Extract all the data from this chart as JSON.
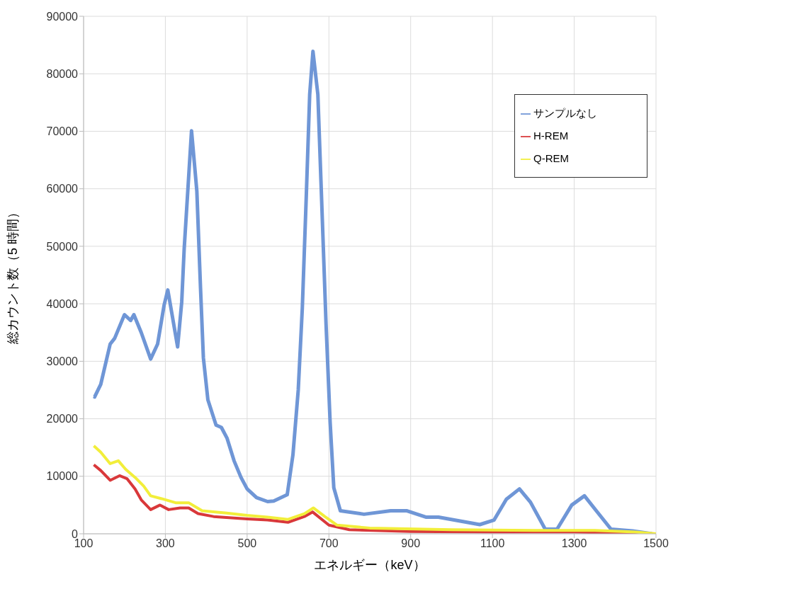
{
  "chart_data": {
    "type": "line",
    "xlabel": "エネルギー（keV）",
    "ylabel": "総カウント数（5 時間）",
    "xlim": [
      100,
      1500
    ],
    "xticks": [
      100,
      300,
      500,
      700,
      900,
      1100,
      1300,
      1500
    ],
    "ylim": [
      0,
      90000
    ],
    "yticks": [
      0,
      10000,
      20000,
      30000,
      40000,
      50000,
      60000,
      70000,
      80000,
      90000
    ],
    "grid": true,
    "legend": "top right",
    "marker": "none",
    "series": [
      {
        "name": "サンプルなし",
        "color": "#6f96d6",
        "x": [
          125,
          127,
          142,
          165,
          176,
          200,
          215,
          223,
          241,
          264,
          281,
          297,
          306,
          330,
          340,
          346,
          364,
          377,
          386,
          393,
          404,
          424,
          437,
          451,
          468,
          485,
          500,
          523,
          550,
          565,
          598,
          612,
          625,
          635,
          645,
          653,
          661,
          673,
          683,
          693,
          703,
          712,
          728,
          786,
          851,
          891,
          937,
          968,
          1069,
          1104,
          1134,
          1166,
          1193,
          1229,
          1258,
          1294,
          1325,
          1354,
          1390,
          1443,
          1490
        ],
        "values": [
          23900,
          23800,
          26000,
          33000,
          34000,
          38100,
          37100,
          38100,
          35000,
          30400,
          33000,
          39800,
          42400,
          32500,
          40300,
          49500,
          70100,
          59600,
          42700,
          30600,
          23300,
          18900,
          18500,
          16600,
          12700,
          9800,
          7800,
          6300,
          5600,
          5700,
          6800,
          13700,
          25000,
          39300,
          59400,
          76400,
          83900,
          76400,
          56500,
          36500,
          19400,
          8000,
          4000,
          3400,
          4000,
          4000,
          2900,
          2900,
          1600,
          2400,
          6000,
          7800,
          5500,
          800,
          800,
          5000,
          6600,
          4000,
          800,
          500,
          0
        ]
      },
      {
        "name": "H-REM",
        "color": "#d9383a",
        "x": [
          125,
          142,
          165,
          188,
          206,
          226,
          241,
          264,
          287,
          308,
          336,
          357,
          380,
          418,
          500,
          550,
          600,
          640,
          660,
          700,
          750,
          900,
          1100,
          1300,
          1500
        ],
        "values": [
          12000,
          11000,
          9300,
          10100,
          9600,
          7800,
          5900,
          4200,
          5000,
          4200,
          4500,
          4500,
          3500,
          3000,
          2600,
          2400,
          2000,
          3000,
          3800,
          1500,
          700,
          400,
          300,
          300,
          0
        ]
      },
      {
        "name": "Q-REM",
        "color": "#f2ee3a",
        "x": [
          125,
          142,
          165,
          185,
          203,
          226,
          247,
          264,
          291,
          325,
          357,
          390,
          450,
          500,
          550,
          600,
          640,
          662,
          690,
          720,
          800,
          1000,
          1200,
          1350,
          1450,
          1500
        ],
        "values": [
          15300,
          14200,
          12200,
          12700,
          11200,
          9800,
          8300,
          6600,
          6100,
          5400,
          5400,
          4000,
          3600,
          3200,
          2900,
          2500,
          3500,
          4500,
          3000,
          1500,
          1000,
          700,
          600,
          600,
          300,
          0
        ]
      }
    ]
  }
}
